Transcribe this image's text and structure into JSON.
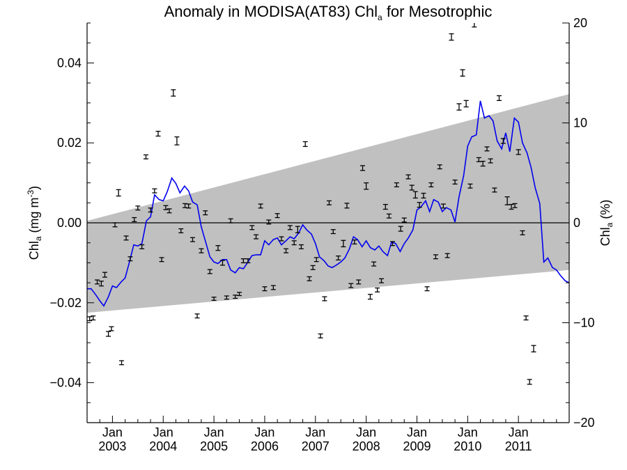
{
  "chart_data": {
    "type": "line",
    "title": "Anomaly in MODISA(AT83) Chl",
    "title_subscript": "a",
    "title_suffix": " for Mesotrophic",
    "ylabel_left": {
      "base": "Chl",
      "sub": "a",
      "rest": " (mg m",
      "sup": "-3",
      "close": ")"
    },
    "ylabel_right": {
      "base": "Chl",
      "sub": "a",
      "rest": " (%)"
    },
    "x_axis": {
      "range": [
        2002.5,
        2012.0
      ],
      "ticks": [
        {
          "x": 2003.0,
          "month": "Jan",
          "year": "2003"
        },
        {
          "x": 2004.0,
          "month": "Jan",
          "year": "2004"
        },
        {
          "x": 2005.0,
          "month": "Jan",
          "year": "2005"
        },
        {
          "x": 2006.0,
          "month": "Jan",
          "year": "2006"
        },
        {
          "x": 2007.0,
          "month": "Jan",
          "year": "2007"
        },
        {
          "x": 2008.0,
          "month": "Jan",
          "year": "2008"
        },
        {
          "x": 2009.0,
          "month": "Jan",
          "year": "2009"
        },
        {
          "x": 2010.0,
          "month": "Jan",
          "year": "2010"
        },
        {
          "x": 2011.0,
          "month": "Jan",
          "year": "2011"
        }
      ]
    },
    "y_left": {
      "range": [
        -0.05,
        0.05
      ],
      "ticks": [
        {
          "v": 0.04,
          "label": "0.04"
        },
        {
          "v": 0.02,
          "label": "0.02"
        },
        {
          "v": 0.0,
          "label": "0.00"
        },
        {
          "v": -0.02,
          "label": "−0.02"
        },
        {
          "v": -0.04,
          "label": "−0.04"
        }
      ]
    },
    "y_right": {
      "range": [
        -20,
        20
      ],
      "ticks": [
        {
          "v": 20,
          "label": "20"
        },
        {
          "v": 10,
          "label": "10"
        },
        {
          "v": 0,
          "label": "0"
        },
        {
          "v": -10,
          "label": "−10"
        },
        {
          "v": -20,
          "label": "−20"
        }
      ]
    },
    "zero_line": true,
    "band": {
      "color": "#c0c0c0",
      "upper": [
        [
          2002.5,
          0.0005
        ],
        [
          2012.0,
          0.0322
        ]
      ],
      "lower": [
        [
          2002.5,
          -0.0225
        ],
        [
          2012.0,
          -0.0118
        ]
      ]
    },
    "line_color": "#0000ee",
    "smoothed_series": [
      [
        2002.5,
        -0.0165
      ],
      [
        2002.58,
        -0.0165
      ],
      [
        2002.67,
        -0.018
      ],
      [
        2002.75,
        -0.0195
      ],
      [
        2002.83,
        -0.0208
      ],
      [
        2002.92,
        -0.0185
      ],
      [
        2003.0,
        -0.0158
      ],
      [
        2003.08,
        -0.0162
      ],
      [
        2003.17,
        -0.0148
      ],
      [
        2003.25,
        -0.0138
      ],
      [
        2003.33,
        -0.01
      ],
      [
        2003.42,
        -0.0055
      ],
      [
        2003.5,
        -0.0058
      ],
      [
        2003.58,
        -0.0052
      ],
      [
        2003.67,
        0.0005
      ],
      [
        2003.75,
        0.0015
      ],
      [
        2003.83,
        0.007
      ],
      [
        2003.92,
        0.0058
      ],
      [
        2004.0,
        0.0055
      ],
      [
        2004.08,
        0.0078
      ],
      [
        2004.17,
        0.0112
      ],
      [
        2004.25,
        0.0098
      ],
      [
        2004.33,
        0.0075
      ],
      [
        2004.42,
        0.0092
      ],
      [
        2004.5,
        0.008
      ],
      [
        2004.58,
        0.0052
      ],
      [
        2004.67,
        0.0045
      ],
      [
        2004.75,
        -0.001
      ],
      [
        2004.83,
        -0.0045
      ],
      [
        2004.92,
        -0.0085
      ],
      [
        2005.0,
        -0.0098
      ],
      [
        2005.08,
        -0.0102
      ],
      [
        2005.17,
        -0.0092
      ],
      [
        2005.25,
        -0.0092
      ],
      [
        2005.33,
        -0.0118
      ],
      [
        2005.42,
        -0.0125
      ],
      [
        2005.5,
        -0.0112
      ],
      [
        2005.58,
        -0.0115
      ],
      [
        2005.67,
        -0.0098
      ],
      [
        2005.75,
        -0.0082
      ],
      [
        2005.83,
        -0.008
      ],
      [
        2005.92,
        -0.008
      ],
      [
        2006.0,
        -0.0045
      ],
      [
        2006.08,
        -0.0055
      ],
      [
        2006.17,
        -0.0042
      ],
      [
        2006.25,
        -0.0038
      ],
      [
        2006.33,
        -0.0055
      ],
      [
        2006.42,
        -0.0045
      ],
      [
        2006.5,
        -0.0035
      ],
      [
        2006.58,
        -0.004
      ],
      [
        2006.67,
        -0.0025
      ],
      [
        2006.75,
        -0.0005
      ],
      [
        2006.83,
        -0.0018
      ],
      [
        2006.92,
        -0.0028
      ],
      [
        2007.0,
        -0.0052
      ],
      [
        2007.08,
        -0.0085
      ],
      [
        2007.17,
        -0.0095
      ],
      [
        2007.25,
        -0.0108
      ],
      [
        2007.33,
        -0.0112
      ],
      [
        2007.42,
        -0.0105
      ],
      [
        2007.5,
        -0.0098
      ],
      [
        2007.58,
        -0.0088
      ],
      [
        2007.67,
        -0.0065
      ],
      [
        2007.75,
        -0.0035
      ],
      [
        2007.83,
        -0.0042
      ],
      [
        2007.92,
        -0.006
      ],
      [
        2008.0,
        -0.0045
      ],
      [
        2008.08,
        -0.0062
      ],
      [
        2008.17,
        -0.0068
      ],
      [
        2008.25,
        -0.0058
      ],
      [
        2008.33,
        -0.0072
      ],
      [
        2008.42,
        -0.0082
      ],
      [
        2008.5,
        -0.0048
      ],
      [
        2008.58,
        -0.0052
      ],
      [
        2008.67,
        -0.0072
      ],
      [
        2008.75,
        -0.0052
      ],
      [
        2008.83,
        -0.0038
      ],
      [
        2008.92,
        -0.0018
      ],
      [
        2009.0,
        0.0032
      ],
      [
        2009.08,
        0.004
      ],
      [
        2009.17,
        0.0055
      ],
      [
        2009.25,
        0.0028
      ],
      [
        2009.33,
        0.0058
      ],
      [
        2009.42,
        0.0052
      ],
      [
        2009.5,
        0.0028
      ],
      [
        2009.58,
        0.0038
      ],
      [
        2009.67,
        0.0032
      ],
      [
        2009.75,
        0.0002
      ],
      [
        2009.83,
        0.0065
      ],
      [
        2009.92,
        0.0118
      ],
      [
        2010.0,
        0.0192
      ],
      [
        2010.08,
        0.0215
      ],
      [
        2010.17,
        0.022
      ],
      [
        2010.25,
        0.0305
      ],
      [
        2010.33,
        0.0262
      ],
      [
        2010.42,
        0.0268
      ],
      [
        2010.5,
        0.0255
      ],
      [
        2010.58,
        0.0205
      ],
      [
        2010.67,
        0.0185
      ],
      [
        2010.75,
        0.0225
      ],
      [
        2010.83,
        0.0178
      ],
      [
        2010.92,
        0.0262
      ],
      [
        2011.0,
        0.0252
      ],
      [
        2011.08,
        0.02
      ],
      [
        2011.17,
        0.0175
      ],
      [
        2011.25,
        0.0138
      ],
      [
        2011.33,
        0.0088
      ],
      [
        2011.42,
        0.0048
      ],
      [
        2011.5,
        -0.0098
      ],
      [
        2011.58,
        -0.0088
      ],
      [
        2011.67,
        -0.0112
      ],
      [
        2011.75,
        -0.0118
      ],
      [
        2011.83,
        -0.0132
      ],
      [
        2011.92,
        -0.0145
      ],
      [
        2012.0,
        -0.015
      ]
    ],
    "monthly_points_with_error_bars": [
      [
        2002.55,
        -0.024,
        0.0005
      ],
      [
        2002.62,
        -0.0238,
        0.0005
      ],
      [
        2002.7,
        -0.0148,
        0.0005
      ],
      [
        2002.78,
        -0.0152,
        0.0006
      ],
      [
        2002.85,
        -0.013,
        0.0006
      ],
      [
        2002.92,
        -0.0278,
        0.0006
      ],
      [
        2002.98,
        -0.0265,
        0.0005
      ],
      [
        2003.05,
        -0.0005,
        0.0005
      ],
      [
        2003.12,
        0.0075,
        0.0008
      ],
      [
        2003.18,
        -0.035,
        0.0005
      ],
      [
        2003.27,
        -0.0038,
        0.0005
      ],
      [
        2003.35,
        -0.009,
        0.0005
      ],
      [
        2003.43,
        0.0008,
        0.0005
      ],
      [
        2003.5,
        0.0037,
        0.0005
      ],
      [
        2003.58,
        -0.006,
        0.0005
      ],
      [
        2003.66,
        0.0165,
        0.0005
      ],
      [
        2003.75,
        0.0032,
        0.0005
      ],
      [
        2003.83,
        0.008,
        0.0005
      ],
      [
        2003.9,
        0.0223,
        0.0006
      ],
      [
        2003.97,
        -0.0092,
        0.0005
      ],
      [
        2004.05,
        0.0038,
        0.0005
      ],
      [
        2004.12,
        0.003,
        0.0005
      ],
      [
        2004.2,
        0.0325,
        0.0008
      ],
      [
        2004.27,
        0.0205,
        0.001
      ],
      [
        2004.35,
        -0.002,
        0.0005
      ],
      [
        2004.43,
        0.0043,
        0.0005
      ],
      [
        2004.5,
        0.0042,
        0.0005
      ],
      [
        2004.58,
        -0.0042,
        0.0005
      ],
      [
        2004.67,
        -0.0233,
        0.0005
      ],
      [
        2004.75,
        -0.007,
        0.0005
      ],
      [
        2004.83,
        0.0025,
        0.0005
      ],
      [
        2004.92,
        -0.0122,
        0.0005
      ],
      [
        2005.0,
        -0.019,
        0.0004
      ],
      [
        2005.08,
        -0.0063,
        0.0006
      ],
      [
        2005.17,
        -0.01,
        0.0006
      ],
      [
        2005.25,
        -0.0187,
        0.0004
      ],
      [
        2005.33,
        0.0005,
        0.0005
      ],
      [
        2005.42,
        -0.0185,
        0.0004
      ],
      [
        2005.5,
        -0.0178,
        0.0004
      ],
      [
        2005.58,
        -0.0095,
        0.0005
      ],
      [
        2005.67,
        -0.0095,
        0.0005
      ],
      [
        2005.75,
        -0.0012,
        0.0005
      ],
      [
        2005.83,
        -0.0035,
        0.0005
      ],
      [
        2005.92,
        0.0042,
        0.0005
      ],
      [
        2006.0,
        -0.0165,
        0.0005
      ],
      [
        2006.08,
        0.0002,
        0.0005
      ],
      [
        2006.17,
        -0.0162,
        0.0005
      ],
      [
        2006.25,
        0.0018,
        0.0005
      ],
      [
        2006.33,
        -0.004,
        0.0005
      ],
      [
        2006.42,
        -0.007,
        0.0005
      ],
      [
        2006.5,
        -0.0012,
        0.0005
      ],
      [
        2006.58,
        -0.005,
        0.0005
      ],
      [
        2006.65,
        -0.0017,
        0.0008
      ],
      [
        2006.72,
        -0.006,
        0.0005
      ],
      [
        2006.8,
        0.0197,
        0.0006
      ],
      [
        2006.88,
        -0.014,
        0.0005
      ],
      [
        2006.95,
        -0.0112,
        0.0005
      ],
      [
        2007.02,
        -0.0092,
        0.0005
      ],
      [
        2007.1,
        -0.0283,
        0.0005
      ],
      [
        2007.18,
        -0.019,
        0.0005
      ],
      [
        2007.27,
        0.005,
        0.0005
      ],
      [
        2007.35,
        -0.0022,
        0.0005
      ],
      [
        2007.45,
        -0.0088,
        0.0005
      ],
      [
        2007.55,
        -0.0052,
        0.0008
      ],
      [
        2007.62,
        0.0043,
        0.0006
      ],
      [
        2007.7,
        -0.0157,
        0.0005
      ],
      [
        2007.77,
        -0.0048,
        0.0005
      ],
      [
        2007.85,
        -0.0148,
        0.0005
      ],
      [
        2007.93,
        0.0137,
        0.0006
      ],
      [
        2008.0,
        0.0092,
        0.0008
      ],
      [
        2008.08,
        -0.0185,
        0.0006
      ],
      [
        2008.15,
        -0.0103,
        0.0005
      ],
      [
        2008.22,
        -0.0168,
        0.0005
      ],
      [
        2008.3,
        -0.0145,
        0.0005
      ],
      [
        2008.38,
        0.004,
        0.0006
      ],
      [
        2008.45,
        0.0017,
        0.0005
      ],
      [
        2008.52,
        -0.0052,
        0.0005
      ],
      [
        2008.6,
        0.0095,
        0.0005
      ],
      [
        2008.68,
        -0.0015,
        0.0006
      ],
      [
        2008.75,
        0.0007,
        0.0005
      ],
      [
        2008.83,
        0.0115,
        0.0005
      ],
      [
        2008.9,
        0.0088,
        0.0006
      ],
      [
        2008.97,
        0.007,
        0.0008
      ],
      [
        2009.05,
        0.0045,
        0.0006
      ],
      [
        2009.13,
        0.0068,
        0.0006
      ],
      [
        2009.2,
        -0.0165,
        0.0005
      ],
      [
        2009.28,
        0.0095,
        0.0005
      ],
      [
        2009.37,
        -0.0085,
        0.0005
      ],
      [
        2009.45,
        0.014,
        0.0005
      ],
      [
        2009.52,
        0.0042,
        0.0005
      ],
      [
        2009.6,
        -0.0082,
        0.0005
      ],
      [
        2009.68,
        0.0465,
        0.0008
      ],
      [
        2009.75,
        0.0102,
        0.0005
      ],
      [
        2009.83,
        0.029,
        0.0008
      ],
      [
        2009.9,
        0.0375,
        0.0008
      ],
      [
        2009.97,
        0.0298,
        0.0008
      ],
      [
        2010.05,
        0.0092,
        0.0005
      ],
      [
        2010.13,
        0.05,
        0.001
      ],
      [
        2010.22,
        0.0158,
        0.0005
      ],
      [
        2010.3,
        0.0148,
        0.0006
      ],
      [
        2010.38,
        0.0185,
        0.0005
      ],
      [
        2010.45,
        0.0155,
        0.0005
      ],
      [
        2010.53,
        0.0082,
        0.0005
      ],
      [
        2010.62,
        0.0312,
        0.0006
      ],
      [
        2010.7,
        0.0205,
        0.0006
      ],
      [
        2010.78,
        0.0055,
        0.001
      ],
      [
        2010.86,
        0.004,
        0.0006
      ],
      [
        2010.93,
        0.0043,
        0.0005
      ],
      [
        2011.0,
        0.0177,
        0.0006
      ],
      [
        2011.08,
        -0.0025,
        0.0005
      ],
      [
        2011.15,
        -0.0238,
        0.0005
      ],
      [
        2011.22,
        -0.0398,
        0.0006
      ],
      [
        2011.3,
        -0.0315,
        0.0008
      ]
    ]
  }
}
